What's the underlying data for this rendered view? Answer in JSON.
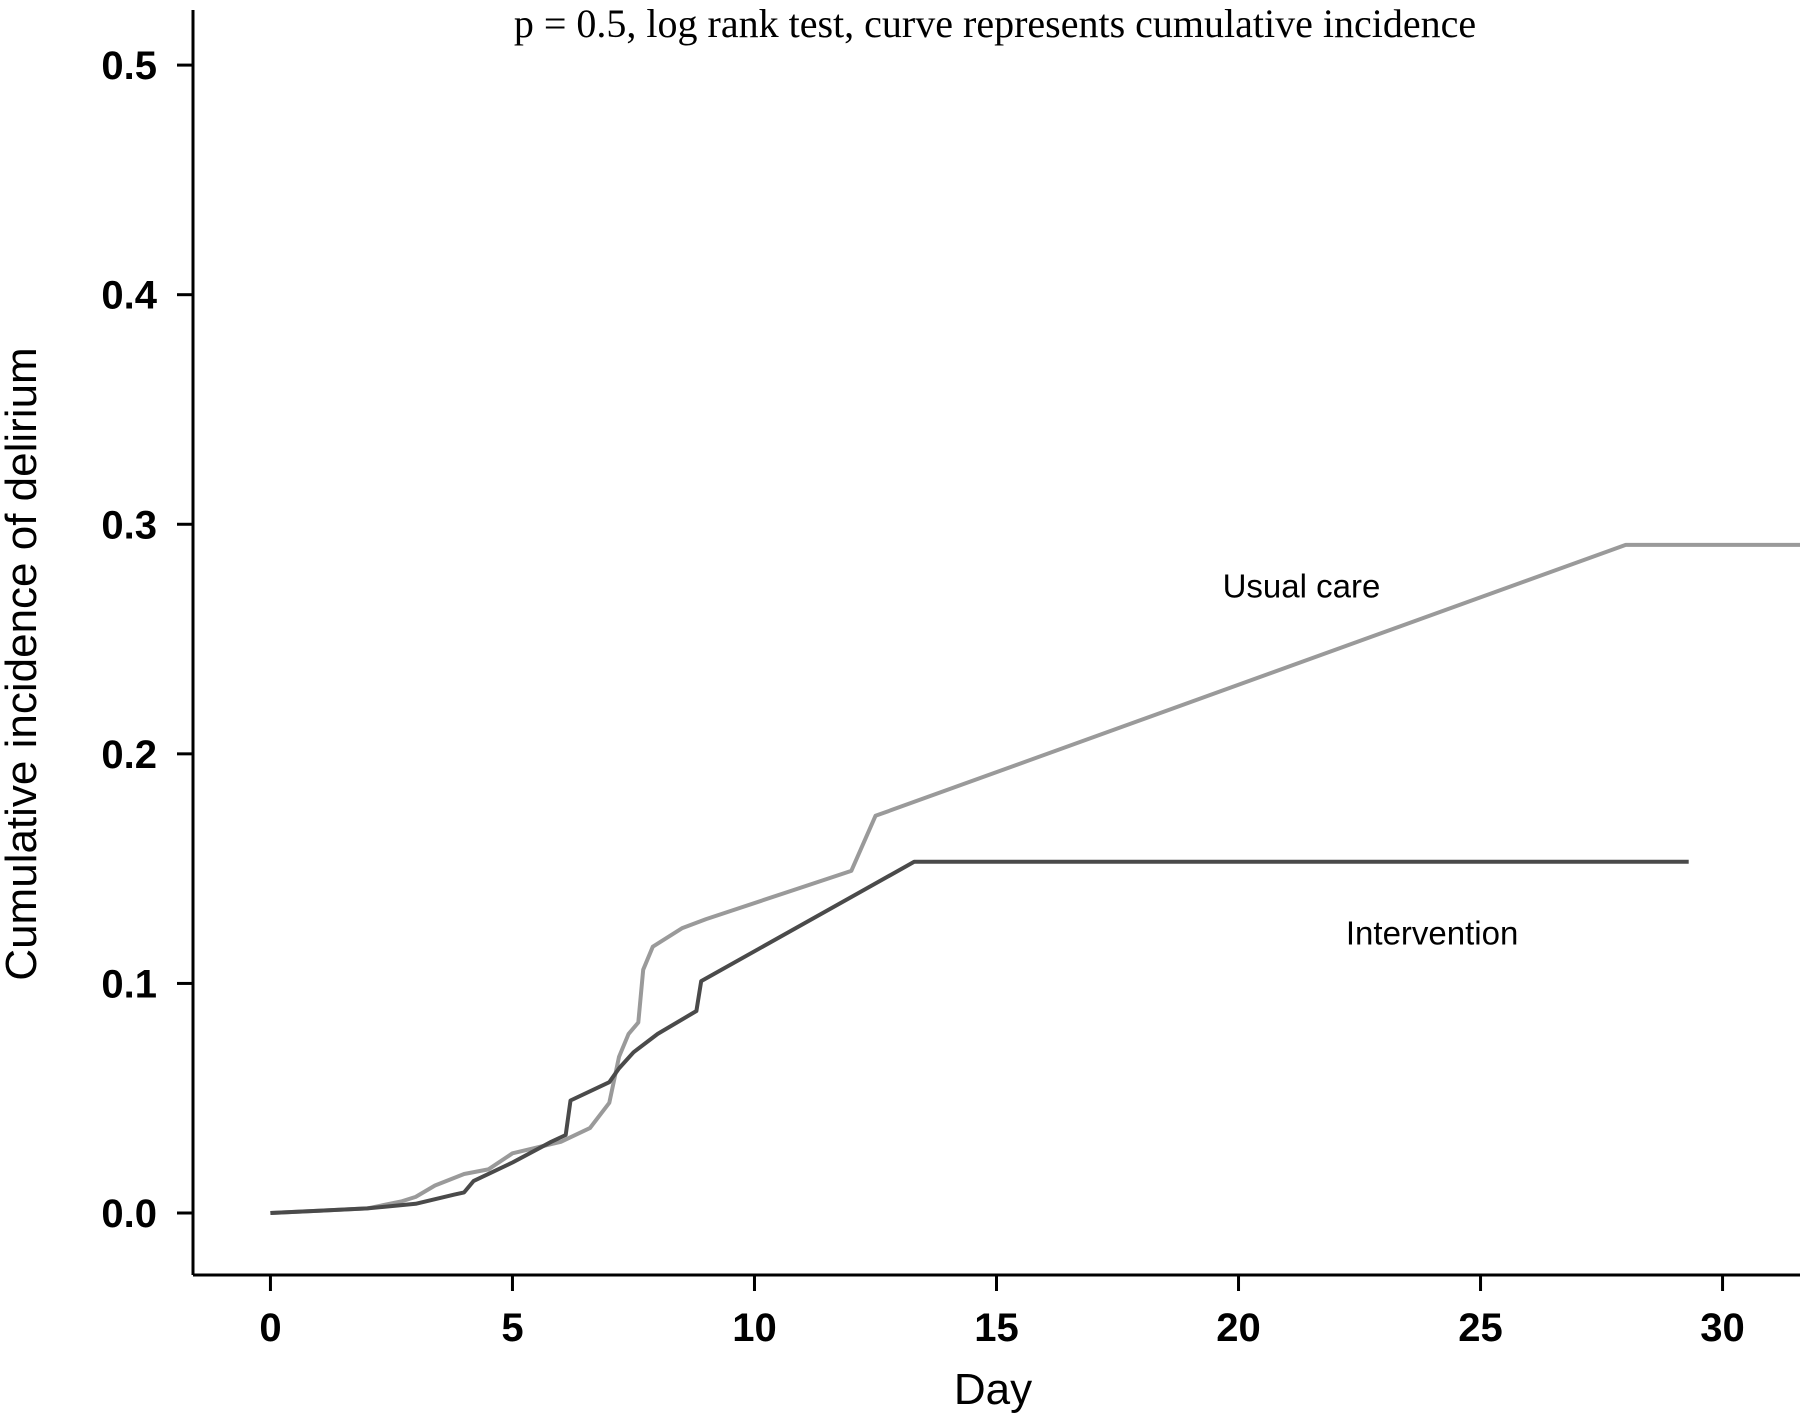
{
  "chart_data": {
    "type": "line",
    "title": "",
    "annotation": "p = 0.5, log rank test, curve represents cumulative incidence",
    "xlabel": "Day",
    "ylabel": "Cumulative incidence of delirium",
    "xlim": [
      -1.6,
      31.6
    ],
    "ylim": [
      -0.027,
      0.524
    ],
    "xticks": [
      0,
      5,
      10,
      15,
      20,
      25,
      30
    ],
    "yticks": [
      0.0,
      0.1,
      0.2,
      0.3,
      0.4,
      0.5
    ],
    "xtick_labels": [
      "0",
      "5",
      "10",
      "15",
      "20",
      "25",
      "30"
    ],
    "ytick_labels": [
      "0.0",
      "0.1",
      "0.2",
      "0.3",
      "0.4",
      "0.5"
    ],
    "grid": false,
    "legend": "none (inline labels)",
    "series": [
      {
        "name": "Usual care",
        "color": "#9a9a9a",
        "label_anchor": [
          21.3,
          0.268
        ],
        "points": [
          [
            0,
            0
          ],
          [
            1,
            0.001
          ],
          [
            2,
            0.002
          ],
          [
            2.7,
            0.005
          ],
          [
            3,
            0.007
          ],
          [
            3.4,
            0.012
          ],
          [
            4,
            0.017
          ],
          [
            4.5,
            0.019
          ],
          [
            5,
            0.026
          ],
          [
            6,
            0.031
          ],
          [
            6.6,
            0.037
          ],
          [
            7,
            0.048
          ],
          [
            7.2,
            0.068
          ],
          [
            7.4,
            0.078
          ],
          [
            7.6,
            0.083
          ],
          [
            7.7,
            0.106
          ],
          [
            7.9,
            0.116
          ],
          [
            8.5,
            0.124
          ],
          [
            9,
            0.128
          ],
          [
            12,
            0.149
          ],
          [
            12.5,
            0.173
          ],
          [
            28,
            0.291
          ],
          [
            31.6,
            0.291
          ]
        ]
      },
      {
        "name": "Intervention",
        "color": "#4a4a4a",
        "label_anchor": [
          24.0,
          0.117
        ],
        "points": [
          [
            0,
            0
          ],
          [
            1,
            0.001
          ],
          [
            2,
            0.002
          ],
          [
            3,
            0.004
          ],
          [
            3.8,
            0.008
          ],
          [
            4,
            0.009
          ],
          [
            4.2,
            0.014
          ],
          [
            5,
            0.022
          ],
          [
            5.8,
            0.031
          ],
          [
            6.1,
            0.034
          ],
          [
            6.2,
            0.049
          ],
          [
            7,
            0.057
          ],
          [
            7.2,
            0.063
          ],
          [
            7.5,
            0.07
          ],
          [
            8,
            0.078
          ],
          [
            8.8,
            0.088
          ],
          [
            8.9,
            0.101
          ],
          [
            13.3,
            0.153
          ],
          [
            29.3,
            0.153
          ]
        ]
      }
    ]
  }
}
